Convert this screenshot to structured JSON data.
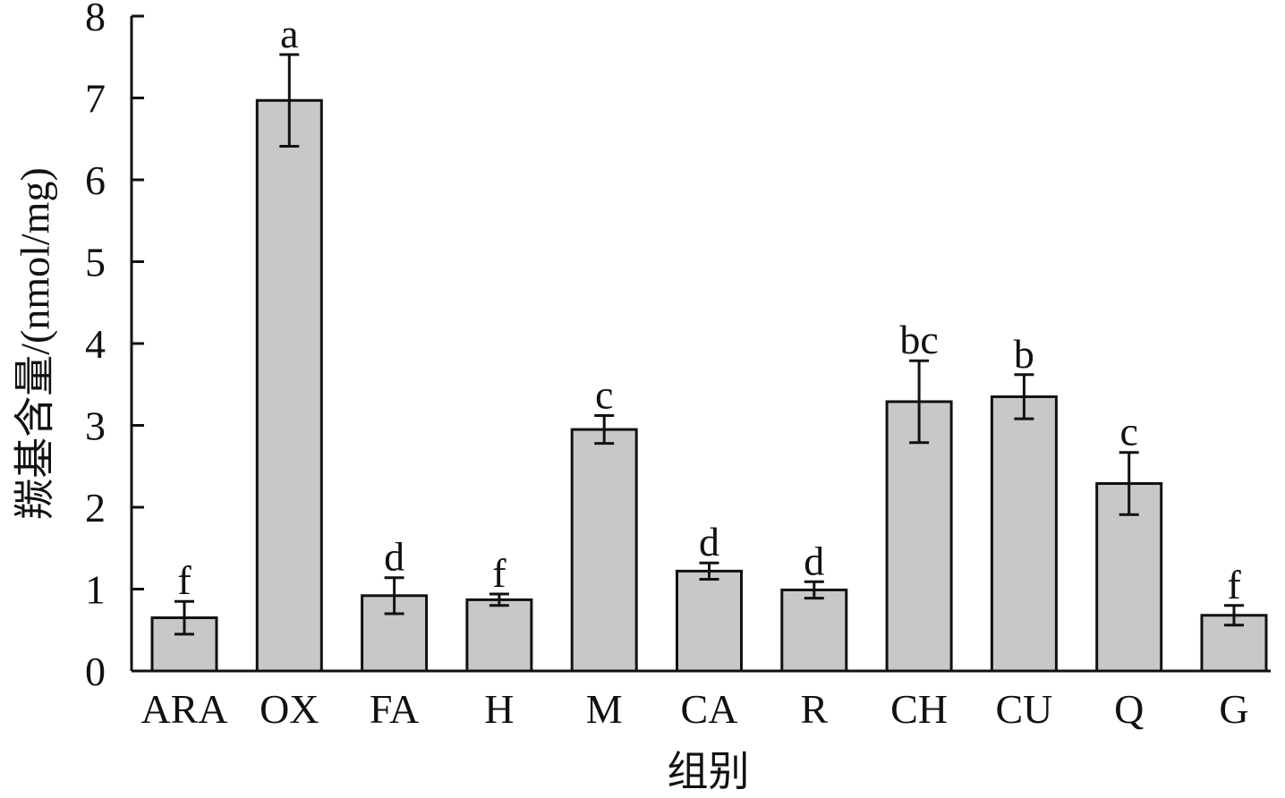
{
  "chart_data": {
    "type": "bar",
    "title": "",
    "xlabel": "组别",
    "ylabel": "羰基含量/(nmol/mg)",
    "categories": [
      "ARA",
      "OX",
      "FA",
      "H",
      "M",
      "CA",
      "R",
      "CH",
      "CU",
      "Q",
      "G"
    ],
    "series": [
      {
        "values": [
          0.65,
          6.97,
          0.92,
          0.87,
          2.95,
          1.22,
          0.99,
          3.29,
          3.35,
          2.29,
          0.68
        ],
        "errors": [
          0.2,
          0.56,
          0.22,
          0.07,
          0.17,
          0.1,
          0.1,
          0.5,
          0.27,
          0.38,
          0.12
        ],
        "labels": [
          "f",
          "a",
          "d",
          "f",
          "c",
          "d",
          "d",
          "bc",
          "b",
          "c",
          "f"
        ]
      }
    ],
    "ylim": [
      0,
      8
    ],
    "yticks": [
      0,
      1,
      2,
      3,
      4,
      5,
      6,
      7,
      8
    ],
    "grid": false,
    "legend": "none",
    "colors": {
      "bar_fill": "#c8c8c8",
      "bar_stroke": "#111111",
      "axis": "#111111",
      "text": "#111111"
    }
  }
}
